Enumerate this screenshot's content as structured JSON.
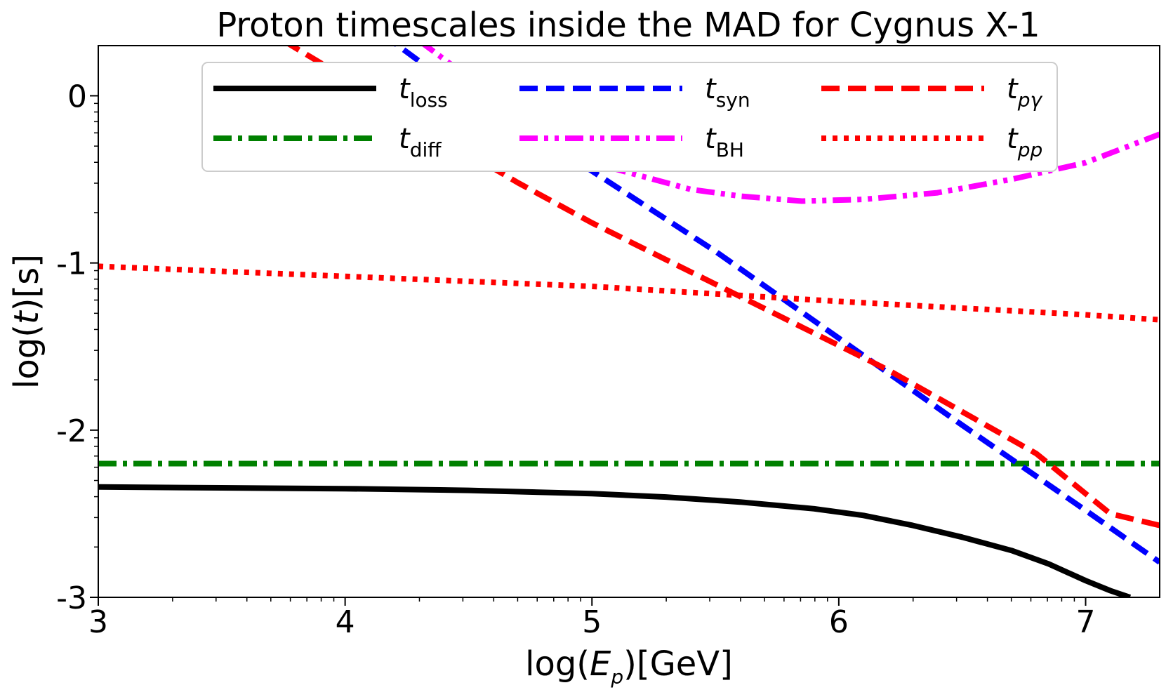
{
  "chart_data": {
    "type": "line",
    "title": "Proton timescales inside the MAD for Cygnus X-1",
    "xlabel": {
      "prefix": "log(",
      "var": "E",
      "sub": "p",
      "suffix": ")[GeV]"
    },
    "ylabel": {
      "prefix": "log(",
      "var": "t",
      "suffix": ")[s]"
    },
    "xlim": [
      3,
      7.3
    ],
    "ylim": [
      -3,
      0.3
    ],
    "xticks": [
      3,
      4,
      5,
      6,
      7
    ],
    "xtick_labels": [
      "3",
      "4",
      "5",
      "6",
      "7"
    ],
    "yticks": [
      -3,
      -2,
      -1,
      0
    ],
    "ytick_labels": [
      "-3",
      "-2",
      "-1",
      "0"
    ],
    "legend_position": "top",
    "series": [
      {
        "key": "loss",
        "name": "t_loss",
        "sym": "t",
        "sub": "loss",
        "sub_italic": false,
        "color": "#000000",
        "style": "solid",
        "points": [
          [
            3.0,
            -2.34
          ],
          [
            3.5,
            -2.345
          ],
          [
            4.0,
            -2.35
          ],
          [
            4.5,
            -2.36
          ],
          [
            5.0,
            -2.38
          ],
          [
            5.3,
            -2.4
          ],
          [
            5.6,
            -2.43
          ],
          [
            5.9,
            -2.47
          ],
          [
            6.1,
            -2.51
          ],
          [
            6.3,
            -2.57
          ],
          [
            6.5,
            -2.64
          ],
          [
            6.7,
            -2.72
          ],
          [
            6.85,
            -2.8
          ],
          [
            7.0,
            -2.9
          ],
          [
            7.1,
            -2.96
          ],
          [
            7.18,
            -3.0
          ]
        ]
      },
      {
        "key": "diff",
        "name": "t_diff",
        "sym": "t",
        "sub": "diff",
        "sub_italic": false,
        "color": "#008000",
        "style": "dashdot",
        "points": [
          [
            3.0,
            -2.2
          ],
          [
            7.3,
            -2.2
          ]
        ]
      },
      {
        "key": "syn",
        "name": "t_syn",
        "sym": "t",
        "sub": "syn",
        "sub_italic": false,
        "color": "#0000ff",
        "style": "dashed",
        "points": [
          [
            4.15,
            0.37
          ],
          [
            4.5,
            -0.01
          ],
          [
            5.0,
            -0.45
          ],
          [
            5.5,
            -0.93
          ],
          [
            6.0,
            -1.45
          ],
          [
            6.5,
            -1.97
          ],
          [
            7.0,
            -2.48
          ],
          [
            7.3,
            -2.79
          ]
        ]
      },
      {
        "key": "BH",
        "name": "t_BH",
        "sym": "t",
        "sub": "BH",
        "sub_italic": false,
        "color": "#ff00ff",
        "style": "dashdotdot",
        "points": [
          [
            4.3,
            0.33
          ],
          [
            4.5,
            0.11
          ],
          [
            4.8,
            -0.23
          ],
          [
            5.1,
            -0.44
          ],
          [
            5.4,
            -0.56
          ],
          [
            5.6,
            -0.6
          ],
          [
            5.85,
            -0.63
          ],
          [
            6.1,
            -0.62
          ],
          [
            6.4,
            -0.58
          ],
          [
            6.7,
            -0.5
          ],
          [
            7.0,
            -0.4
          ],
          [
            7.3,
            -0.23
          ]
        ]
      },
      {
        "key": "pg",
        "name": "t_pγ",
        "sym": "t",
        "sub": "pγ",
        "sub_italic": true,
        "color": "#ff0000",
        "style": "dashed",
        "points": [
          [
            3.75,
            0.33
          ],
          [
            4.1,
            0.02
          ],
          [
            4.4,
            -0.26
          ],
          [
            4.7,
            -0.52
          ],
          [
            5.0,
            -0.76
          ],
          [
            5.3,
            -0.98
          ],
          [
            5.6,
            -1.2
          ],
          [
            5.9,
            -1.42
          ],
          [
            6.2,
            -1.64
          ],
          [
            6.5,
            -1.89
          ],
          [
            6.8,
            -2.14
          ],
          [
            7.0,
            -2.38
          ],
          [
            7.1,
            -2.5
          ],
          [
            7.3,
            -2.57
          ]
        ]
      },
      {
        "key": "pp",
        "name": "t_pp",
        "sym": "t",
        "sub": "pp",
        "sub_italic": true,
        "color": "#ff0000",
        "style": "dotted",
        "points": [
          [
            3.0,
            -1.02
          ],
          [
            4.0,
            -1.08
          ],
          [
            5.0,
            -1.14
          ],
          [
            6.0,
            -1.23
          ],
          [
            7.0,
            -1.31
          ],
          [
            7.3,
            -1.34
          ]
        ]
      }
    ]
  }
}
